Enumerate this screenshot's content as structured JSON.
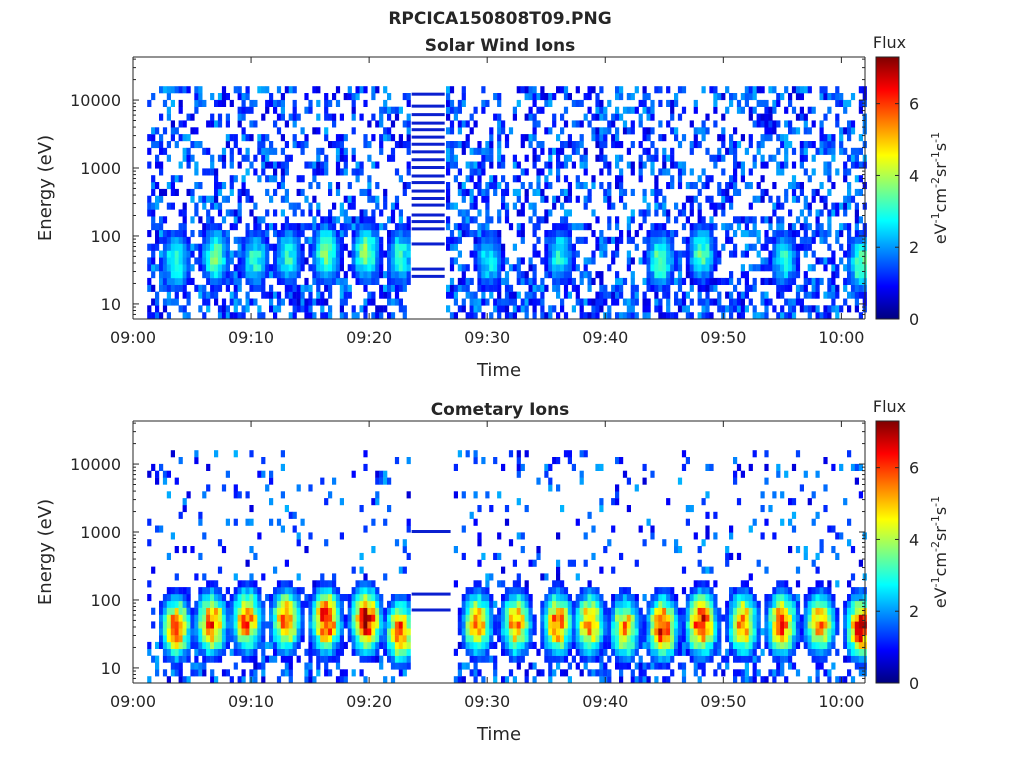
{
  "figure": {
    "title": "RPCICA150808T09.PNG"
  },
  "chart_data": [
    {
      "type": "heatmap",
      "title": "Solar Wind Ions",
      "xlabel": "Time",
      "ylabel": "Energy (eV)",
      "x_ticks": [
        "09:00",
        "09:10",
        "09:20",
        "09:30",
        "09:40",
        "09:50",
        "10:00"
      ],
      "x_range": [
        "09:00",
        "10:02"
      ],
      "y_scale": "log",
      "y_ticks": [
        10,
        100,
        1000,
        10000
      ],
      "y_tick_labels": [
        "10",
        "100",
        "1000",
        "10000"
      ],
      "y_range": [
        6,
        43000
      ],
      "colorbar": {
        "title": "Flux",
        "label": "eV-1cm-2sr-1s-1",
        "range": [
          0,
          7.3
        ],
        "ticks": [
          0,
          2,
          4,
          6
        ],
        "colormap": "jet"
      },
      "data_gap": [
        "09:23.5",
        "09:26.5"
      ],
      "calibration_lines_in_gap_eV": [
        25,
        32,
        75,
        125,
        160,
        200,
        280,
        350,
        450,
        600,
        750,
        1000,
        1300,
        1700,
        2200,
        2800,
        3600,
        4500,
        6000,
        8000,
        12000
      ],
      "ion_bursts": [
        {
          "t": "09:03.5",
          "e": 38,
          "flux": 3.4
        },
        {
          "t": "09:06.8",
          "e": 45,
          "flux": 3.6
        },
        {
          "t": "09:10.2",
          "e": 40,
          "flux": 3.2
        },
        {
          "t": "09:13.0",
          "e": 45,
          "flux": 3.1
        },
        {
          "t": "09:16.2",
          "e": 50,
          "flux": 3.7
        },
        {
          "t": "09:19.6",
          "e": 50,
          "flux": 3.8
        },
        {
          "t": "09:22.5",
          "e": 45,
          "flux": 3.2
        },
        {
          "t": "09:30.0",
          "e": 40,
          "flux": 2.9
        },
        {
          "t": "09:36.0",
          "e": 45,
          "flux": 3.0
        },
        {
          "t": "09:44.5",
          "e": 40,
          "flux": 3.6
        },
        {
          "t": "09:48.0",
          "e": 50,
          "flux": 3.4
        },
        {
          "t": "09:55.0",
          "e": 40,
          "flux": 3.0
        },
        {
          "t": "10:01.5",
          "e": 35,
          "flux": 3.5
        }
      ]
    },
    {
      "type": "heatmap",
      "title": "Cometary Ions",
      "xlabel": "Time",
      "ylabel": "Energy (eV)",
      "x_ticks": [
        "09:00",
        "09:10",
        "09:20",
        "09:30",
        "09:40",
        "09:50",
        "10:00"
      ],
      "x_range": [
        "09:00",
        "10:02"
      ],
      "y_scale": "log",
      "y_ticks": [
        10,
        100,
        1000,
        10000
      ],
      "y_tick_labels": [
        "10",
        "100",
        "1000",
        "10000"
      ],
      "y_range": [
        6,
        43000
      ],
      "colorbar": {
        "title": "Flux",
        "label": "eV-1cm-2sr-1s-1",
        "range": [
          0,
          7.3
        ],
        "ticks": [
          0,
          2,
          4,
          6
        ],
        "colormap": "jet"
      },
      "data_gap": [
        "09:23.5",
        "09:27"
      ],
      "calibration_lines_in_gap_eV": [
        70,
        120,
        1000
      ],
      "ion_bursts": [
        {
          "t": "09:03.5",
          "e": 35,
          "flux": 6.0
        },
        {
          "t": "09:06.5",
          "e": 40,
          "flux": 6.2
        },
        {
          "t": "09:09.5",
          "e": 45,
          "flux": 6.0
        },
        {
          "t": "09:12.8",
          "e": 45,
          "flux": 5.8
        },
        {
          "t": "09:16.2",
          "e": 45,
          "flux": 6.8
        },
        {
          "t": "09:19.6",
          "e": 45,
          "flux": 7.0
        },
        {
          "t": "09:22.5",
          "e": 30,
          "flux": 6.0
        },
        {
          "t": "09:29.0",
          "e": 40,
          "flux": 5.6
        },
        {
          "t": "09:32.3",
          "e": 40,
          "flux": 5.8
        },
        {
          "t": "09:35.8",
          "e": 40,
          "flux": 6.0
        },
        {
          "t": "09:38.5",
          "e": 40,
          "flux": 5.6
        },
        {
          "t": "09:41.5",
          "e": 35,
          "flux": 5.4
        },
        {
          "t": "09:44.7",
          "e": 35,
          "flux": 6.6
        },
        {
          "t": "09:48.0",
          "e": 40,
          "flux": 6.8
        },
        {
          "t": "09:51.5",
          "e": 40,
          "flux": 5.8
        },
        {
          "t": "09:54.8",
          "e": 40,
          "flux": 6.2
        },
        {
          "t": "09:58.0",
          "e": 40,
          "flux": 5.6
        },
        {
          "t": "10:01.5",
          "e": 35,
          "flux": 6.6
        }
      ]
    }
  ]
}
